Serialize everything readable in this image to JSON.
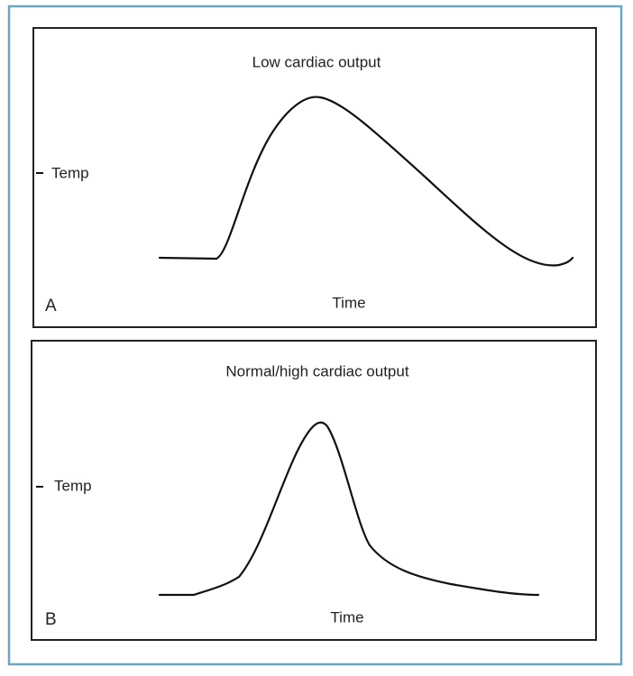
{
  "panels": [
    {
      "title": "Low cardiac output",
      "y_label": "Temp",
      "x_label": "Time",
      "letter": "A"
    },
    {
      "title": "Normal/high cardiac output",
      "y_label": "Temp",
      "x_label": "Time",
      "letter": "B"
    }
  ]
}
